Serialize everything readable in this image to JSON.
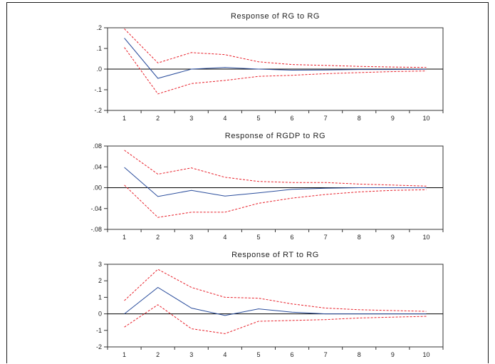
{
  "chart_data": [
    {
      "type": "line",
      "title": "Response of RG to RG",
      "x": [
        1,
        2,
        3,
        4,
        5,
        6,
        7,
        8,
        9,
        10
      ],
      "ylim": [
        -0.2,
        0.2
      ],
      "yticks": [
        0.2,
        0.1,
        0.0,
        -0.1,
        -0.2
      ],
      "ytick_labels": [
        ".2",
        ".1",
        ".0",
        "-.1",
        "-.2"
      ],
      "xtick_labels": [
        "1",
        "2",
        "3",
        "4",
        "5",
        "6",
        "7",
        "8",
        "9",
        "10"
      ],
      "series": [
        {
          "role": "response",
          "values": [
            0.15,
            -0.045,
            0.0,
            0.008,
            0.0,
            -0.005,
            -0.004,
            -0.002,
            -0.002,
            -0.001
          ]
        },
        {
          "role": "upper band",
          "values": [
            0.195,
            0.03,
            0.08,
            0.07,
            0.035,
            0.022,
            0.018,
            0.013,
            0.01,
            0.008
          ]
        },
        {
          "role": "lower band",
          "values": [
            0.105,
            -0.12,
            -0.07,
            -0.055,
            -0.035,
            -0.03,
            -0.022,
            -0.017,
            -0.012,
            -0.009
          ]
        }
      ],
      "colors": {
        "response": "#2a4d9c",
        "bands": "#e8202a",
        "zero_line": "#000000"
      }
    },
    {
      "type": "line",
      "title": "Response of RGDP to RG",
      "x": [
        1,
        2,
        3,
        4,
        5,
        6,
        7,
        8,
        9,
        10
      ],
      "ylim": [
        -0.08,
        0.08
      ],
      "yticks": [
        0.08,
        0.04,
        0.0,
        -0.04,
        -0.08
      ],
      "ytick_labels": [
        ".08",
        ".04",
        ".00",
        "-.04",
        "-.08"
      ],
      "xtick_labels": [
        "1",
        "2",
        "3",
        "4",
        "5",
        "6",
        "7",
        "8",
        "9",
        "10"
      ],
      "series": [
        {
          "role": "response",
          "values": [
            0.039,
            -0.017,
            -0.005,
            -0.016,
            -0.01,
            -0.003,
            -0.001,
            0.0,
            0.0,
            0.0
          ]
        },
        {
          "role": "upper band",
          "values": [
            0.072,
            0.026,
            0.038,
            0.02,
            0.012,
            0.01,
            0.01,
            0.007,
            0.005,
            0.003
          ]
        },
        {
          "role": "lower band",
          "values": [
            0.005,
            -0.057,
            -0.047,
            -0.047,
            -0.03,
            -0.02,
            -0.013,
            -0.008,
            -0.005,
            -0.004
          ]
        }
      ],
      "colors": {
        "response": "#2a4d9c",
        "bands": "#e8202a",
        "zero_line": "#000000"
      }
    },
    {
      "type": "line",
      "title": "Response of RT to RG",
      "x": [
        1,
        2,
        3,
        4,
        5,
        6,
        7,
        8,
        9,
        10
      ],
      "ylim": [
        -2,
        3
      ],
      "yticks": [
        3,
        2,
        1,
        0,
        -1,
        -2
      ],
      "ytick_labels": [
        "3",
        "2",
        "1",
        "0",
        "-1",
        "-2"
      ],
      "xtick_labels": [
        "1",
        "2",
        "3",
        "4",
        "5",
        "6",
        "7",
        "8",
        "9",
        "10"
      ],
      "series": [
        {
          "role": "response",
          "values": [
            0.0,
            1.6,
            0.35,
            -0.1,
            0.3,
            0.1,
            0.0,
            0.0,
            0.0,
            0.0
          ]
        },
        {
          "role": "upper band",
          "values": [
            0.8,
            2.7,
            1.6,
            1.0,
            0.95,
            0.6,
            0.35,
            0.25,
            0.2,
            0.15
          ]
        },
        {
          "role": "lower band",
          "values": [
            -0.8,
            0.55,
            -0.9,
            -1.2,
            -0.45,
            -0.4,
            -0.35,
            -0.25,
            -0.2,
            -0.15
          ]
        }
      ],
      "colors": {
        "response": "#2a4d9c",
        "bands": "#e8202a",
        "zero_line": "#000000"
      }
    }
  ]
}
